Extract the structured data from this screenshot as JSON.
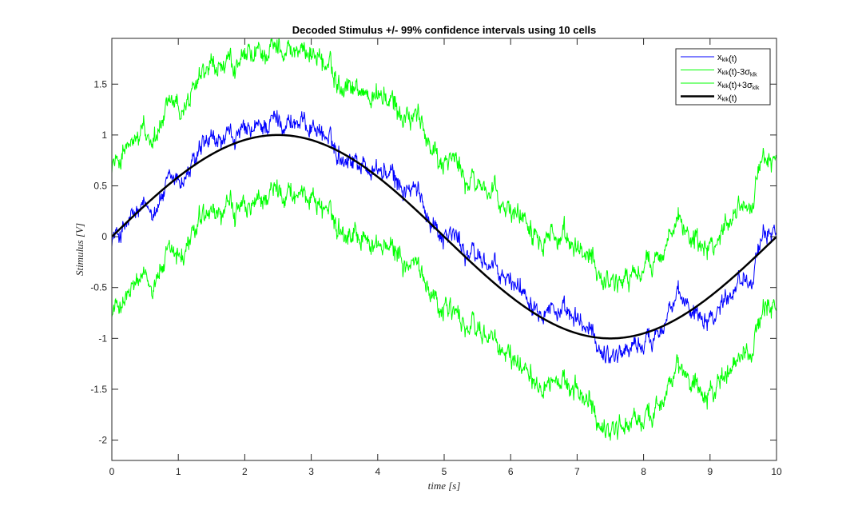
{
  "chart_data": {
    "type": "line",
    "title": "Decoded Stimulus +/- 99% confidence intervals using 10 cells",
    "xlabel": "time [s]",
    "ylabel": "Stimulus [V]",
    "xlim": [
      0,
      10
    ],
    "ylim": [
      -2.2,
      1.95
    ],
    "x_ticks": [
      0,
      1,
      2,
      3,
      4,
      5,
      6,
      7,
      8,
      9,
      10
    ],
    "y_ticks": [
      -2,
      -1.5,
      -1,
      -0.5,
      0,
      0.5,
      1,
      1.5
    ],
    "grid": false,
    "legend_position": "top-right",
    "true_signal": {
      "function": "sin(2*pi*t/10)",
      "x": [
        0,
        0.5,
        1,
        1.5,
        2,
        2.5,
        3,
        3.5,
        4,
        4.5,
        5,
        5.5,
        6,
        6.5,
        7,
        7.5,
        8,
        8.5,
        9,
        9.5,
        10
      ],
      "values": [
        0,
        0.309,
        0.588,
        0.809,
        0.951,
        1.0,
        0.951,
        0.809,
        0.588,
        0.309,
        0,
        -0.309,
        -0.588,
        -0.809,
        -0.951,
        -1.0,
        -0.951,
        -0.809,
        -0.588,
        -0.309,
        0
      ]
    },
    "decoded_signal": {
      "x": [
        0,
        0.5,
        1,
        1.5,
        2,
        2.5,
        3,
        3.5,
        4,
        4.5,
        5,
        5.5,
        6,
        6.5,
        7,
        7.5,
        8,
        8.5,
        9,
        9.5,
        10
      ],
      "values": [
        0.0,
        0.25,
        0.55,
        0.9,
        1.0,
        1.15,
        1.1,
        0.8,
        0.65,
        0.45,
        0.05,
        -0.2,
        -0.45,
        -0.65,
        -0.85,
        -1.15,
        -1.05,
        -0.65,
        -0.75,
        -0.4,
        0.1
      ]
    },
    "confidence_half_width": 0.72,
    "series": [
      {
        "name": "x",
        "sub": "klk",
        "suffix": "(t)",
        "sigma": "",
        "color": "#0000ff",
        "width": 1
      },
      {
        "name": "x",
        "sub": "klk",
        "suffix": "(t)-3",
        "sigma": "σ",
        "color": "#00ff00",
        "width": 1
      },
      {
        "name": "x",
        "sub": "klk",
        "suffix": "(t)+3",
        "sigma": "σ",
        "color": "#00ff00",
        "width": 1
      },
      {
        "name": "x",
        "sub": "klk",
        "suffix": "(t)",
        "sigma": "",
        "color": "#000000",
        "width": 2.5
      }
    ]
  }
}
